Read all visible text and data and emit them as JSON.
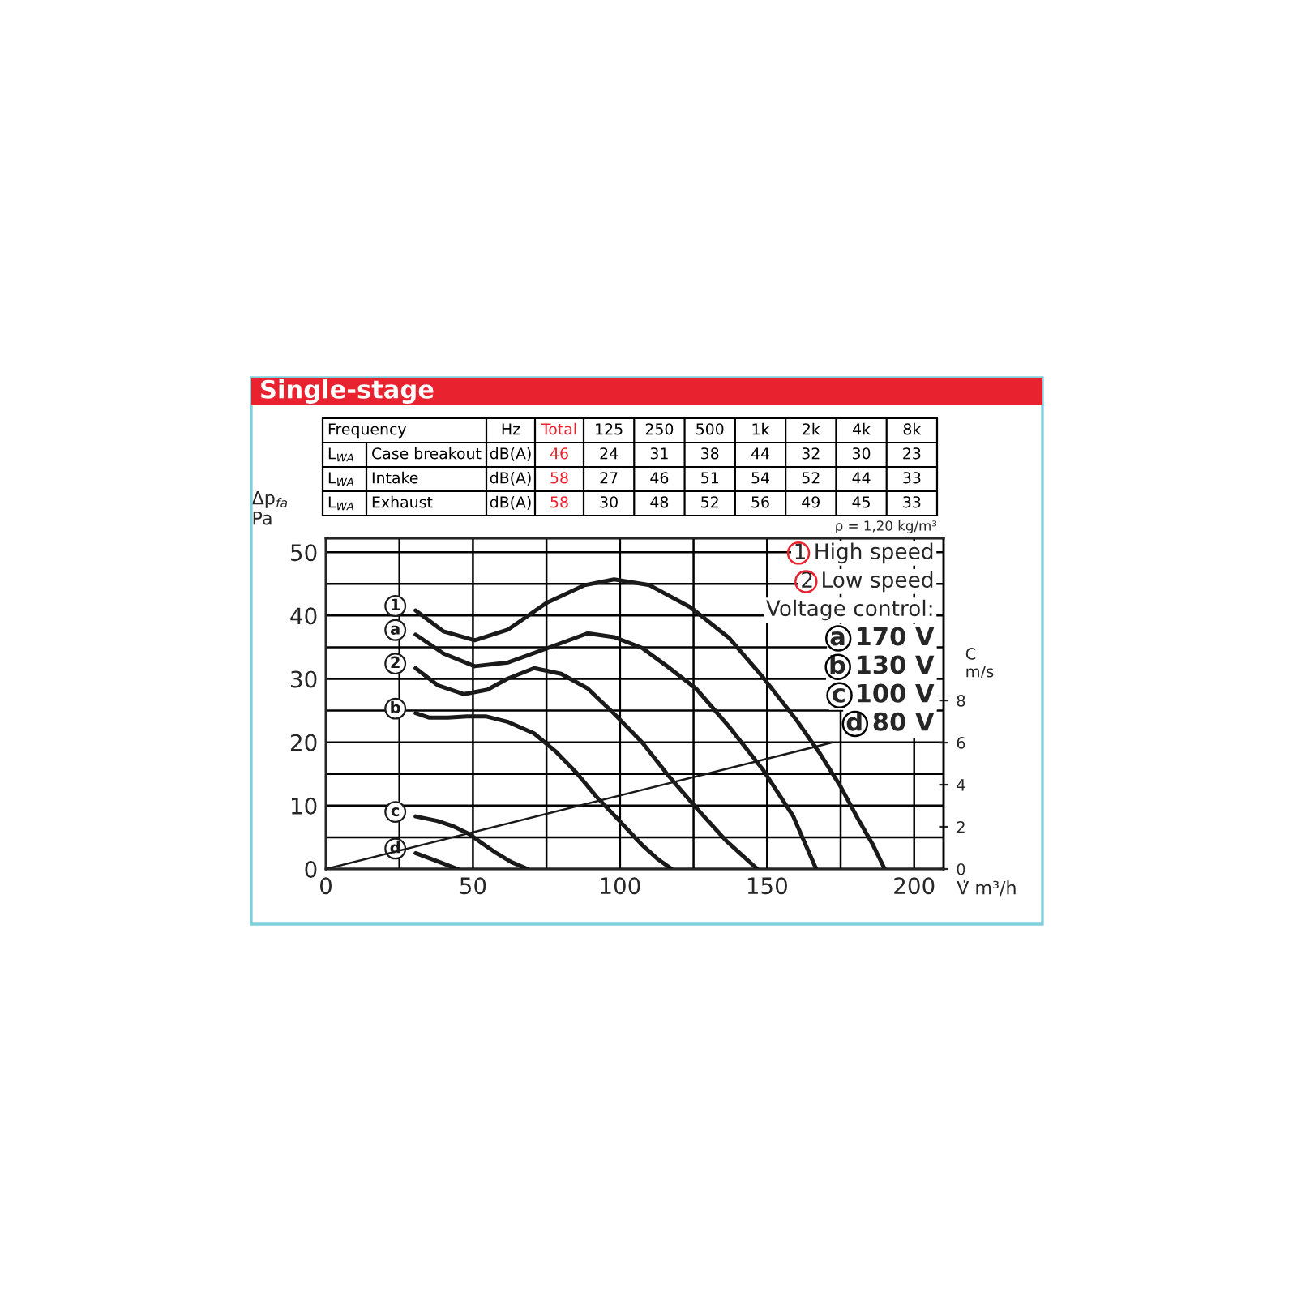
{
  "chart_data": {
    "type": "line",
    "title": "Single-stage",
    "xlabel": "V̇ m³/h",
    "ylabel": "Δp$_{fa}$\nPa",
    "y2label": "C\nm/s",
    "xlim": [
      0,
      210
    ],
    "ylim": [
      0,
      52.2
    ],
    "y2lim": [
      0,
      15.7
    ],
    "xticks": [
      0,
      {
        "value": 25,
        "label": null
      },
      50,
      {
        "value": 75,
        "label": null
      },
      100,
      {
        "value": 125,
        "label": null
      },
      150,
      {
        "value": 175,
        "label": null
      },
      200
    ],
    "yticks": [
      0,
      {
        "value": 5,
        "label": null
      },
      10,
      {
        "value": 15,
        "label": null
      },
      20,
      {
        "value": 25,
        "label": null
      },
      30,
      {
        "value": 35,
        "label": null
      },
      40,
      {
        "value": 45,
        "label": null
      },
      50
    ],
    "y2ticks": [
      0,
      2,
      4,
      6,
      8
    ],
    "grid": true,
    "legend": "left",
    "series": [
      {
        "name": "1",
        "color": "#1a1a1a",
        "x": [
          30.5,
          40,
          50.6,
          62,
          75,
          88,
          98,
          110,
          124,
          137,
          148.7,
          160,
          168,
          175,
          180.8,
          186,
          190
        ],
        "values": [
          40.8,
          37.5,
          36.1,
          37.8,
          42,
          44.8,
          45.7,
          44.8,
          41.3,
          36.5,
          30.2,
          23.5,
          18.2,
          13,
          8,
          3.8,
          0
        ]
      },
      {
        "name": "a",
        "color": "#1a1a1a",
        "x": [
          30.5,
          40,
          50.6,
          62,
          75,
          89,
          98,
          107.5,
          116,
          125.8,
          137,
          148.7,
          158.8,
          166.7
        ],
        "values": [
          37,
          34,
          32,
          32.6,
          34.8,
          37.2,
          36.6,
          34.9,
          32,
          28.5,
          22.5,
          15.6,
          8.4,
          0
        ]
      },
      {
        "name": "2",
        "color": "#1a1a1a",
        "x": [
          30.5,
          38,
          47,
          55,
          61.6,
          70.8,
          80,
          89,
          98,
          107.5,
          116,
          125.8,
          136,
          146.7
        ],
        "values": [
          31.7,
          29,
          27.6,
          28.3,
          30,
          31.7,
          30.8,
          28.5,
          24.5,
          20,
          15,
          9.7,
          4.5,
          0
        ]
      },
      {
        "name": "b",
        "color": "#1a1a1a",
        "x": [
          30.5,
          35,
          41.5,
          48,
          54.3,
          62,
          70.8,
          78,
          85,
          92,
          100,
          107.5,
          113,
          117.6
        ],
        "values": [
          24.6,
          23.9,
          23.9,
          24.1,
          24.1,
          23.2,
          21.4,
          18.6,
          15.3,
          11.4,
          7.5,
          3.8,
          1.5,
          0
        ]
      },
      {
        "name": "c",
        "color": "#1a1a1a",
        "x": [
          30.5,
          37.8,
          43,
          48.8,
          53,
          58,
          63,
          68.6
        ],
        "values": [
          8.3,
          7.6,
          6.8,
          5.5,
          4.1,
          2.5,
          1.1,
          0
        ]
      },
      {
        "name": "d",
        "color": "#1a1a1a",
        "x": [
          30.5,
          37.5,
          44.8
        ],
        "values": [
          2.5,
          1.3,
          0
        ]
      },
      {
        "axis": "y2",
        "color": "#1a1a1a",
        "x": [
          0,
          172
        ],
        "values": [
          0,
          6
        ]
      }
    ],
    "annotations": [
      "Frequency\t\tHz\tTotal\t125\t250\t500\t1k\t2k\t4k\t8k",
      "L$_{WA}$\tCase breakout\tdB(A)\t46\t24\t31\t38\t44\t32\t30\t23",
      "L$_{WA}$\tIntake\tdB(A)\t58\t27\t46\t51\t54\t52\t44\t33",
      "L$_{WA}$\tExhaust\tdB(A)\t58\t30\t48\t52\t56\t49\t45\t33",
      "ρ = 1,20 kg/m³",
      "1 High speed",
      "2 Low speed",
      "Voltage control:",
      "a 170 V",
      "b 130 V",
      "c 100 V",
      "d 80 V"
    ]
  }
}
